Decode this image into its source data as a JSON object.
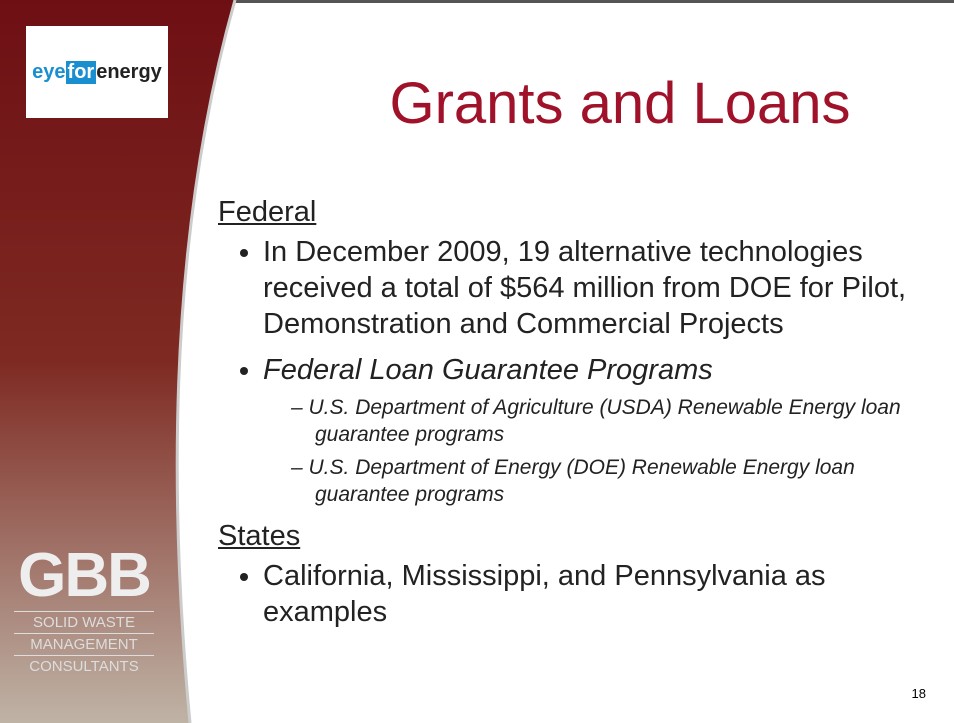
{
  "logo": {
    "part1": "eye",
    "part2": "for",
    "part3": "energy"
  },
  "title": "Grants and Loans",
  "sections": [
    {
      "heading": "Federal",
      "bullets": [
        {
          "text": "In December 2009, 19 alternative technologies received a total of $564 million from DOE for Pilot, Demonstration and Commercial Projects"
        },
        {
          "text": "Federal Loan Guarantee Programs",
          "subs": [
            "U.S. Department of Agriculture (USDA) Renewable Energy loan guarantee programs",
            "U.S. Department of Energy (DOE) Renewable Energy loan guarantee programs"
          ]
        }
      ]
    },
    {
      "heading": "States",
      "bullets": [
        {
          "text": "California, Mississippi, and Pennsylvania as examples"
        }
      ]
    }
  ],
  "brand": {
    "mark": "GBB",
    "lines": [
      "SOLID WASTE",
      "MANAGEMENT",
      "CONSULTANTS"
    ]
  },
  "page_number": "18"
}
